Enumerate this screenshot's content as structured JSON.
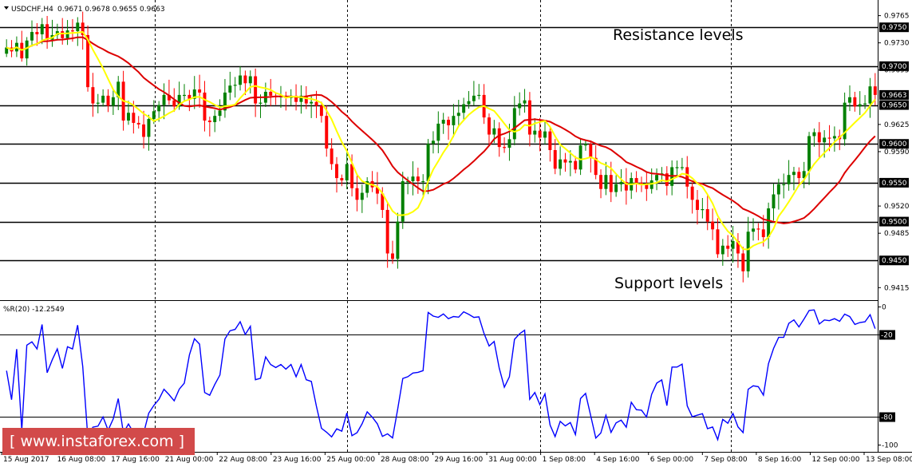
{
  "header": {
    "symbol": "USDCHF,H4",
    "ohlc": "0.9671 0.9678 0.9655 0.9663"
  },
  "indicator": {
    "label": "%R(20) -12.2549",
    "levels": [
      0,
      -20,
      -80,
      -100
    ],
    "level_labels": [
      "0",
      "-20",
      "-80",
      "-100"
    ],
    "color": "#0000ff"
  },
  "annotations": {
    "resistance": "Resistance levels",
    "support": "Support levels"
  },
  "logo": {
    "text": "[ www.instaforex.com ]",
    "bg": "#d24a4a"
  },
  "colors": {
    "bull": "#008000",
    "bear": "#ff0000",
    "ma_fast": "#ffff00",
    "ma_slow": "#dd0000",
    "wpr": "#0000ff",
    "levels": "#000000"
  },
  "chart_data": {
    "type": "candlestick",
    "title": "USDCHF,H4",
    "price_axis_ticks": [
      "0.9765",
      "0.9730",
      "0.9695",
      "0.9625",
      "0.9590",
      "0.9520",
      "0.9485",
      "0.9415"
    ],
    "level_labels": [
      "0.9750",
      "0.9700",
      "0.9650",
      "0.9600",
      "0.9550",
      "0.9500",
      "0.9450"
    ],
    "levels": [
      0.975,
      0.97,
      0.965,
      0.96,
      0.955,
      0.95,
      0.945
    ],
    "current_price": "0.9663",
    "ylim": [
      0.9403,
      0.978
    ],
    "x_labels": [
      "15 Aug 2017",
      "16 Aug 08:00",
      "17 Aug 16:00",
      "21 Aug 00:00",
      "22 Aug 08:00",
      "23 Aug 16:00",
      "25 Aug 00:00",
      "28 Aug 08:00",
      "29 Aug 16:00",
      "31 Aug 00:00",
      "1 Sep 08:00",
      "4 Sep 16:00",
      "6 Sep 00:00",
      "7 Sep 08:00",
      "8 Sep 16:00",
      "12 Sep 00:00",
      "13 Sep 08:00"
    ],
    "close": [
      0.9724,
      0.9719,
      0.973,
      0.971,
      0.9733,
      0.9744,
      0.9741,
      0.9754,
      0.9734,
      0.974,
      0.9745,
      0.9736,
      0.9746,
      0.9745,
      0.9756,
      0.974,
      0.9673,
      0.9652,
      0.9653,
      0.9662,
      0.9649,
      0.966,
      0.968,
      0.963,
      0.964,
      0.9627,
      0.9625,
      0.9609,
      0.9632,
      0.9642,
      0.965,
      0.9663,
      0.9656,
      0.9648,
      0.9663,
      0.9663,
      0.9658,
      0.967,
      0.9666,
      0.963,
      0.9628,
      0.9636,
      0.9643,
      0.9666,
      0.9675,
      0.9676,
      0.9688,
      0.9678,
      0.9687,
      0.9652,
      0.9653,
      0.9667,
      0.9662,
      0.966,
      0.9662,
      0.9659,
      0.9662,
      0.9654,
      0.9662,
      0.9652,
      0.9654,
      0.9649,
      0.9636,
      0.9594,
      0.9574,
      0.9556,
      0.9553,
      0.9574,
      0.9543,
      0.9528,
      0.9537,
      0.9552,
      0.9544,
      0.9536,
      0.9515,
      0.9459,
      0.9452,
      0.95,
      0.9552,
      0.9552,
      0.9558,
      0.9552,
      0.9552,
      0.96,
      0.9604,
      0.9626,
      0.9631,
      0.9624,
      0.9636,
      0.964,
      0.9651,
      0.9655,
      0.9662,
      0.9663,
      0.9634,
      0.9612,
      0.962,
      0.9596,
      0.9595,
      0.9606,
      0.9646,
      0.9652,
      0.9656,
      0.9612,
      0.9617,
      0.9608,
      0.9616,
      0.9592,
      0.9568,
      0.958,
      0.9576,
      0.9578,
      0.9567,
      0.9598,
      0.96,
      0.9582,
      0.956,
      0.9542,
      0.956,
      0.9538,
      0.9548,
      0.9551,
      0.954,
      0.9556,
      0.955,
      0.9549,
      0.9542,
      0.9553,
      0.956,
      0.9562,
      0.9546,
      0.957,
      0.957,
      0.957,
      0.9545,
      0.9528,
      0.9515,
      0.9516,
      0.95,
      0.949,
      0.9458,
      0.9469,
      0.9465,
      0.9475,
      0.9459,
      0.9436,
      0.9487,
      0.9491,
      0.949,
      0.948,
      0.9517,
      0.9535,
      0.9548,
      0.9548,
      0.956,
      0.9564,
      0.9556,
      0.9565,
      0.961,
      0.9615,
      0.9602,
      0.9608,
      0.9607,
      0.961,
      0.9606,
      0.9653,
      0.966,
      0.9648,
      0.9651,
      0.9652,
      0.9674,
      0.9663
    ]
  }
}
